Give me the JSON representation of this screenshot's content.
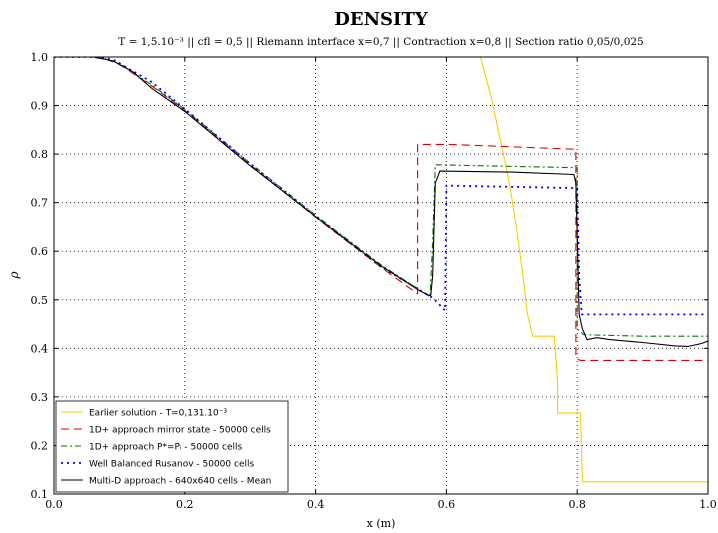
{
  "chart_data": {
    "type": "line",
    "title": "DENSITY",
    "subtitle": "T = 1,5.10⁻³ || cfl = 0,5 || Riemann interface x=0,7 || Contraction x=0,8 || Section ratio 0,05/0,025",
    "xlabel": "x (m)",
    "ylabel": "ρ",
    "xlim": [
      0.0,
      1.0
    ],
    "ylim": [
      0.1,
      1.0
    ],
    "xticks": [
      "0.0",
      "0.2",
      "0.4",
      "0.6",
      "0.8",
      "1.0"
    ],
    "yticks": [
      "0.1",
      "0.2",
      "0.3",
      "0.4",
      "0.5",
      "0.6",
      "0.7",
      "0.8",
      "0.9",
      "1.0"
    ],
    "grid": true,
    "legend_position": "bottom-left",
    "series": [
      {
        "name": "Earlier solution - T=0,131.10⁻³",
        "color": "#ffcc00",
        "dash": "solid",
        "points": [
          [
            0.0,
            1.0
          ],
          [
            0.652,
            1.0
          ],
          [
            0.66,
            0.96
          ],
          [
            0.668,
            0.92
          ],
          [
            0.676,
            0.87
          ],
          [
            0.684,
            0.82
          ],
          [
            0.692,
            0.77
          ],
          [
            0.7,
            0.71
          ],
          [
            0.708,
            0.64
          ],
          [
            0.716,
            0.56
          ],
          [
            0.724,
            0.47
          ],
          [
            0.732,
            0.425
          ],
          [
            0.765,
            0.425
          ],
          [
            0.77,
            0.33
          ],
          [
            0.77,
            0.267
          ],
          [
            0.805,
            0.267
          ],
          [
            0.808,
            0.125
          ],
          [
            1.0,
            0.125
          ]
        ]
      },
      {
        "name": "1D+ approach mirror state - 50000 cells",
        "color": "#dd0000",
        "dash": "8,5",
        "points": [
          [
            0.0,
            1.0
          ],
          [
            0.07,
            1.0
          ],
          [
            0.1,
            0.985
          ],
          [
            0.15,
            0.94
          ],
          [
            0.2,
            0.89
          ],
          [
            0.3,
            0.778
          ],
          [
            0.4,
            0.67
          ],
          [
            0.5,
            0.567
          ],
          [
            0.556,
            0.512
          ],
          [
            0.556,
            0.82
          ],
          [
            0.604,
            0.82
          ],
          [
            0.798,
            0.81
          ],
          [
            0.798,
            0.38
          ],
          [
            0.805,
            0.375
          ],
          [
            1.0,
            0.375
          ]
        ]
      },
      {
        "name": "1D+ approach P*=Pᵢ - 50000 cells",
        "color": "#007700",
        "dash": "6,3,2,3",
        "points": [
          [
            0.0,
            1.0
          ],
          [
            0.07,
            1.0
          ],
          [
            0.1,
            0.987
          ],
          [
            0.15,
            0.942
          ],
          [
            0.2,
            0.892
          ],
          [
            0.3,
            0.781
          ],
          [
            0.4,
            0.674
          ],
          [
            0.5,
            0.572
          ],
          [
            0.575,
            0.506
          ],
          [
            0.579,
            0.62
          ],
          [
            0.583,
            0.778
          ],
          [
            0.8,
            0.772
          ],
          [
            0.8,
            0.44
          ],
          [
            0.81,
            0.428
          ],
          [
            0.9,
            0.425
          ],
          [
            1.0,
            0.425
          ]
        ]
      },
      {
        "name": "Well Balanced Rusanov - 50000 cells",
        "color": "#0000ee",
        "dash": "2,4",
        "points": [
          [
            0.0,
            1.0
          ],
          [
            0.06,
            1.0
          ],
          [
            0.09,
            0.995
          ],
          [
            0.15,
            0.948
          ],
          [
            0.2,
            0.893
          ],
          [
            0.3,
            0.78
          ],
          [
            0.4,
            0.672
          ],
          [
            0.5,
            0.568
          ],
          [
            0.58,
            0.503
          ],
          [
            0.598,
            0.478
          ],
          [
            0.6,
            0.735
          ],
          [
            0.605,
            0.735
          ],
          [
            0.8,
            0.73
          ],
          [
            0.803,
            0.55
          ],
          [
            0.807,
            0.47
          ],
          [
            1.0,
            0.47
          ]
        ]
      },
      {
        "name": "Multi-D approach - 640x640 cells - Mean",
        "color": "#000000",
        "dash": "solid",
        "points": [
          [
            0.0,
            1.0
          ],
          [
            0.06,
            1.0
          ],
          [
            0.09,
            0.992
          ],
          [
            0.12,
            0.97
          ],
          [
            0.15,
            0.935
          ],
          [
            0.2,
            0.888
          ],
          [
            0.3,
            0.776
          ],
          [
            0.4,
            0.671
          ],
          [
            0.5,
            0.57
          ],
          [
            0.56,
            0.518
          ],
          [
            0.572,
            0.51
          ],
          [
            0.576,
            0.508
          ],
          [
            0.579,
            0.55
          ],
          [
            0.583,
            0.74
          ],
          [
            0.59,
            0.765
          ],
          [
            0.7,
            0.763
          ],
          [
            0.795,
            0.758
          ],
          [
            0.798,
            0.74
          ],
          [
            0.803,
            0.47
          ],
          [
            0.808,
            0.44
          ],
          [
            0.815,
            0.418
          ],
          [
            0.83,
            0.422
          ],
          [
            0.85,
            0.418
          ],
          [
            0.9,
            0.412
          ],
          [
            0.95,
            0.405
          ],
          [
            0.97,
            0.404
          ],
          [
            0.99,
            0.41
          ],
          [
            1.0,
            0.415
          ]
        ]
      }
    ]
  }
}
